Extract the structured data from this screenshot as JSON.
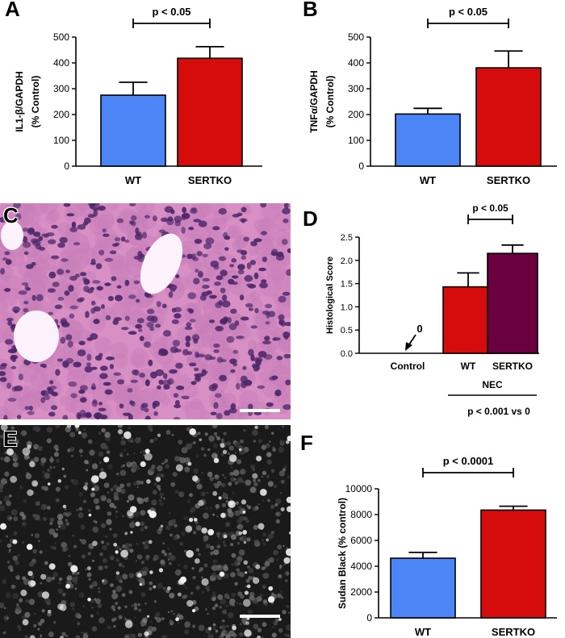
{
  "panel_labels": {
    "a": "A",
    "b": "B",
    "c": "C",
    "d": "D",
    "e": "E",
    "f": "F"
  },
  "micrographs": {
    "c": {
      "style": "H&E stained tissue",
      "base": "#d88fc4",
      "cell": "#4a2668"
    },
    "e": {
      "style": "fluorescence grayscale",
      "base": "#1a1a1a",
      "cell": "#f2f2f2"
    }
  },
  "chart_data": [
    {
      "id": "A",
      "type": "bar",
      "categories": [
        "WT",
        "SERTKO"
      ],
      "values": [
        275,
        418
      ],
      "errors": [
        50,
        45
      ],
      "colors": [
        "#4c85f6",
        "#d60b0b"
      ],
      "ylabel_lines": [
        "IL1-β/GAPDH",
        "(% Control)"
      ],
      "ylim": [
        0,
        500
      ],
      "yticks": [
        0,
        100,
        200,
        300,
        400,
        500
      ],
      "sig": {
        "label": "p < 0.05",
        "from": 0,
        "to": 1
      }
    },
    {
      "id": "B",
      "type": "bar",
      "categories": [
        "WT",
        "SERTKO"
      ],
      "values": [
        202,
        381
      ],
      "errors": [
        22,
        65
      ],
      "colors": [
        "#4c85f6",
        "#d60b0b"
      ],
      "ylabel_lines": [
        "TNFα/GAPDH",
        "(% Control)"
      ],
      "ylim": [
        0,
        500
      ],
      "yticks": [
        0,
        100,
        200,
        300,
        400,
        500
      ],
      "sig": {
        "label": "p < 0.05",
        "from": 0,
        "to": 1
      }
    },
    {
      "id": "D",
      "type": "bar",
      "categories": [
        "Control",
        "WT",
        "SERTKO"
      ],
      "values": [
        0,
        1.43,
        2.15
      ],
      "errors": [
        0,
        0.3,
        0.18
      ],
      "colors": [
        "#ffffff",
        "#d60b0b",
        "#6a0040"
      ],
      "ylabel_lines": [
        "Histological Score"
      ],
      "ylim": [
        0,
        2.5
      ],
      "yticks": [
        0.0,
        0.5,
        1.0,
        1.5,
        2.0,
        2.5
      ],
      "tick_format": "fixed1",
      "sig": {
        "label": "p < 0.05",
        "from": 1,
        "to": 2
      },
      "zero_annotation": "0",
      "group_label": "NEC",
      "footnote": "p < 0.001 vs 0"
    },
    {
      "id": "F",
      "type": "bar",
      "categories": [
        "WT",
        "SERTKO"
      ],
      "values": [
        4620,
        8350
      ],
      "errors": [
        450,
        300
      ],
      "colors": [
        "#4c85f6",
        "#d60b0b"
      ],
      "ylabel_lines": [
        "Sudan Black  (% control)"
      ],
      "ylim": [
        0,
        10000
      ],
      "yticks": [
        0,
        2000,
        4000,
        6000,
        8000,
        10000
      ],
      "sig": {
        "label": "p < 0.0001",
        "from": 0,
        "to": 1
      }
    }
  ]
}
